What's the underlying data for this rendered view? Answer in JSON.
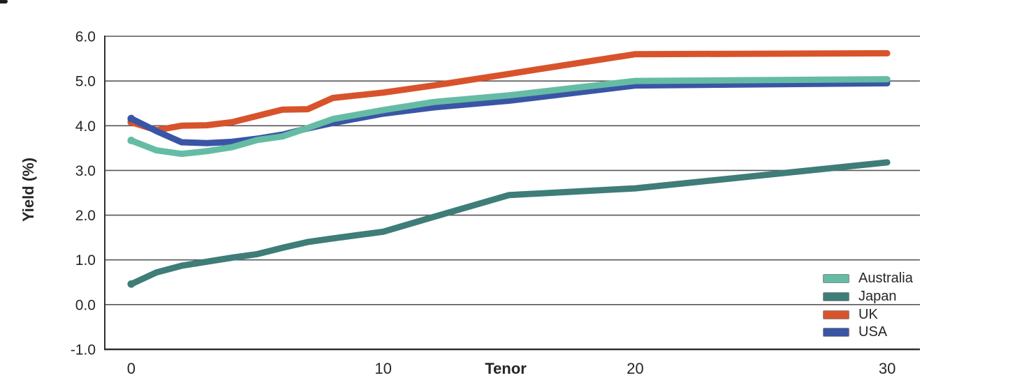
{
  "chart_data": {
    "type": "line",
    "title": "",
    "xlabel": "Tenor",
    "ylabel": "Yield (%)",
    "xlim": [
      -1.05,
      31.3
    ],
    "ylim": [
      -1.0,
      6.0
    ],
    "grid": true,
    "grid_values": [
      6,
      5,
      4,
      3,
      2,
      1,
      0
    ],
    "y_ticks": [
      {
        "value": 6,
        "label": "6.0"
      },
      {
        "value": 5,
        "label": "5.0"
      },
      {
        "value": 4,
        "label": "4.0"
      },
      {
        "value": 3,
        "label": "3.0"
      },
      {
        "value": 2,
        "label": "2.0"
      },
      {
        "value": 1,
        "label": "1.0"
      },
      {
        "value": 0,
        "label": "0.0"
      },
      {
        "value": -1,
        "label": "-1.0"
      }
    ],
    "x_ticks": [
      {
        "value": 0,
        "label": "0"
      },
      {
        "value": 10,
        "label": "10"
      },
      {
        "value": 20,
        "label": "20"
      },
      {
        "value": 30,
        "label": "30"
      }
    ],
    "legend_position": "lower right",
    "x": [
      0,
      1,
      2,
      3,
      4,
      5,
      6,
      7,
      8,
      10,
      12,
      15,
      20,
      30
    ],
    "series": [
      {
        "name": "Australia",
        "color": "#65BCA5",
        "values": [
          3.67,
          3.45,
          3.37,
          3.43,
          3.52,
          3.68,
          3.76,
          3.95,
          4.15,
          4.35,
          4.53,
          4.68,
          5.0,
          5.04
        ]
      },
      {
        "name": "Japan",
        "color": "#3E7D78",
        "values": [
          0.46,
          0.72,
          0.87,
          0.96,
          1.05,
          1.13,
          1.27,
          1.4,
          1.48,
          1.63,
          1.96,
          2.45,
          2.6,
          3.18
        ]
      },
      {
        "name": "UK",
        "color": "#D8532B",
        "values": [
          4.08,
          3.9,
          4.0,
          4.01,
          4.08,
          4.22,
          4.36,
          4.37,
          4.62,
          4.74,
          4.9,
          5.16,
          5.6,
          5.62
        ]
      },
      {
        "name": "USA",
        "color": "#3A55A5",
        "values": [
          4.16,
          3.88,
          3.63,
          3.61,
          3.64,
          3.71,
          3.8,
          3.94,
          4.06,
          4.27,
          4.41,
          4.56,
          4.9,
          4.95
        ]
      }
    ],
    "draw_order": [
      2,
      1,
      3,
      0
    ],
    "line_width": 9
  },
  "colors": {
    "background": "#FFFFFF",
    "gridline": "#57575A",
    "axis": "#303030",
    "text": "#262626",
    "legend_border": "#8C8C8C"
  }
}
